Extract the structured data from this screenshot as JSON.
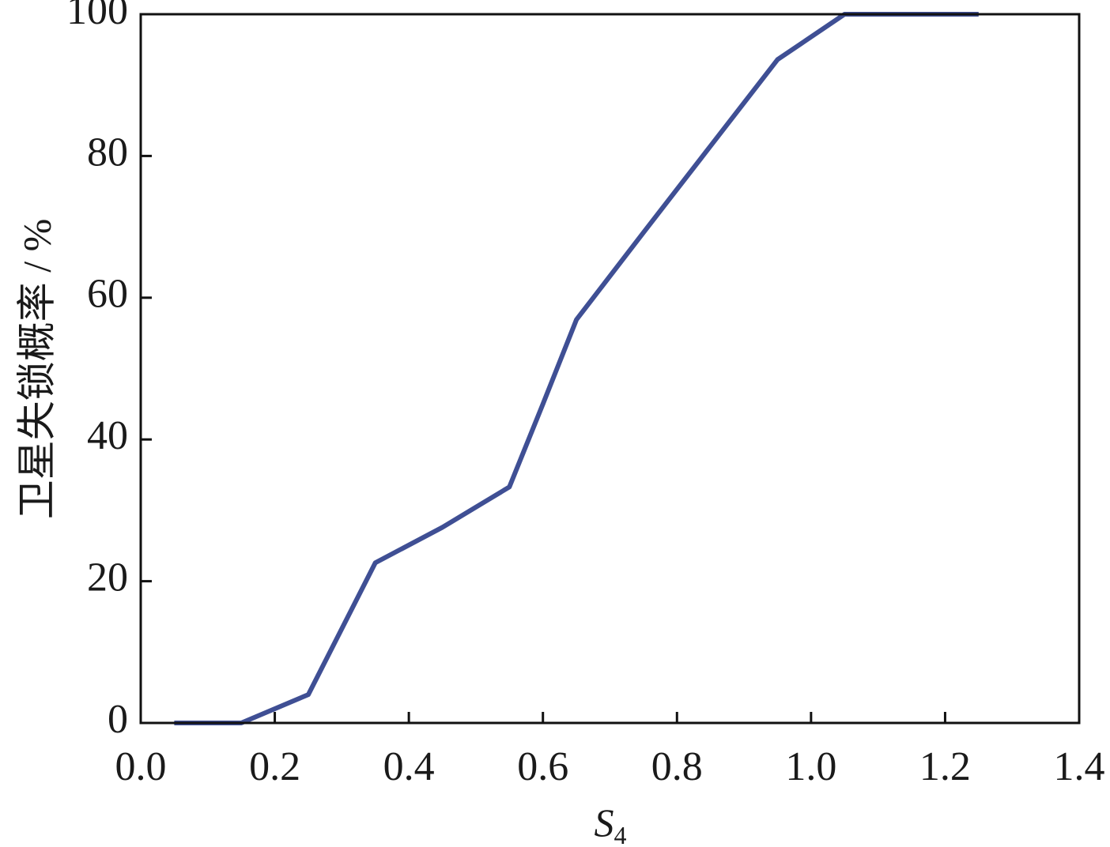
{
  "chart_data": {
    "type": "line",
    "y_label": "卫星失锁概率 / %",
    "x_label": "S",
    "x_label_subscript": "4",
    "x": [
      0.05,
      0.15,
      0.25,
      0.35,
      0.45,
      0.55,
      0.6,
      0.65,
      0.75,
      0.85,
      0.95,
      1.05,
      1.15,
      1.25
    ],
    "series": [
      {
        "color": "#3f4f94",
        "values": [
          0,
          0,
          4,
          22.6,
          27.6,
          33.3,
          45,
          56.9,
          69.2,
          81.4,
          93.6,
          100,
          100,
          100
        ]
      }
    ],
    "xlim": [
      0,
      1.4
    ],
    "xticks": [
      {
        "value": 0,
        "label": "0.0"
      },
      0.2,
      0.4,
      0.6,
      0.8,
      {
        "value": 1,
        "label": "1.0"
      },
      1.2,
      1.4
    ],
    "ylim": [
      0,
      100
    ],
    "yticks": [
      0,
      20,
      40,
      60,
      80,
      100
    ]
  }
}
